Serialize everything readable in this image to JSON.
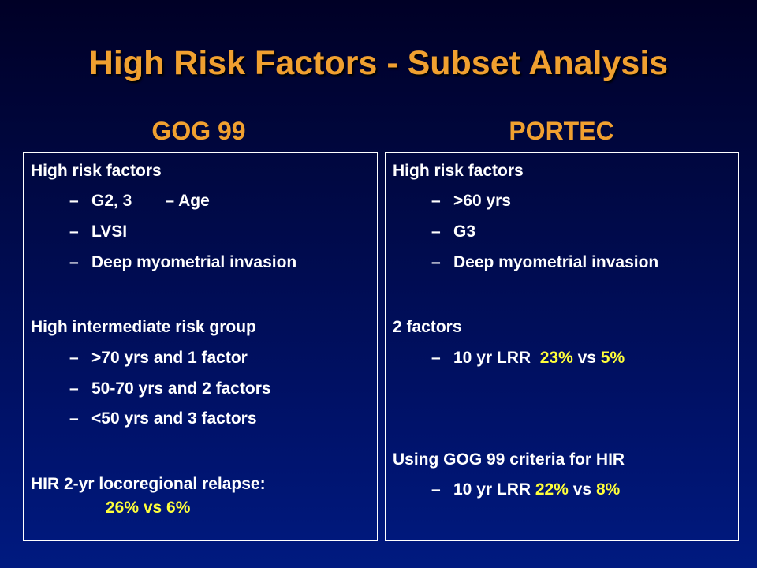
{
  "title": "High Risk Factors - Subset Analysis",
  "left": {
    "heading": "GOG 99",
    "risk_header": "High risk factors",
    "risk_items": {
      "g23": "G2, 3",
      "age": "– Age",
      "lvsi": "LVSI",
      "deep": "Deep myometrial invasion"
    },
    "hir_header": "High intermediate risk group",
    "hir_items": [
      ">70 yrs and 1 factor",
      "50-70 yrs  and 2 factors",
      "<50 yrs and 3 factors"
    ],
    "relapse_header": "HIR 2-yr locoregional relapse:",
    "relapse_value": "26% vs 6%"
  },
  "right": {
    "heading": "PORTEC",
    "risk_header": "High risk factors",
    "risk_items": [
      ">60 yrs",
      "G3",
      "Deep myometrial invasion"
    ],
    "two_factors_header": "2 factors",
    "two_factors_item": {
      "prefix": "10 yr LRR  ",
      "value1": "23%",
      "mid": " vs ",
      "value2": "5%"
    },
    "gog_header": "Using GOG 99 criteria for HIR",
    "gog_item": {
      "prefix": "10 yr LRR ",
      "value1": "22%",
      "mid": " vs ",
      "value2": "8%"
    }
  },
  "bullet": "–"
}
